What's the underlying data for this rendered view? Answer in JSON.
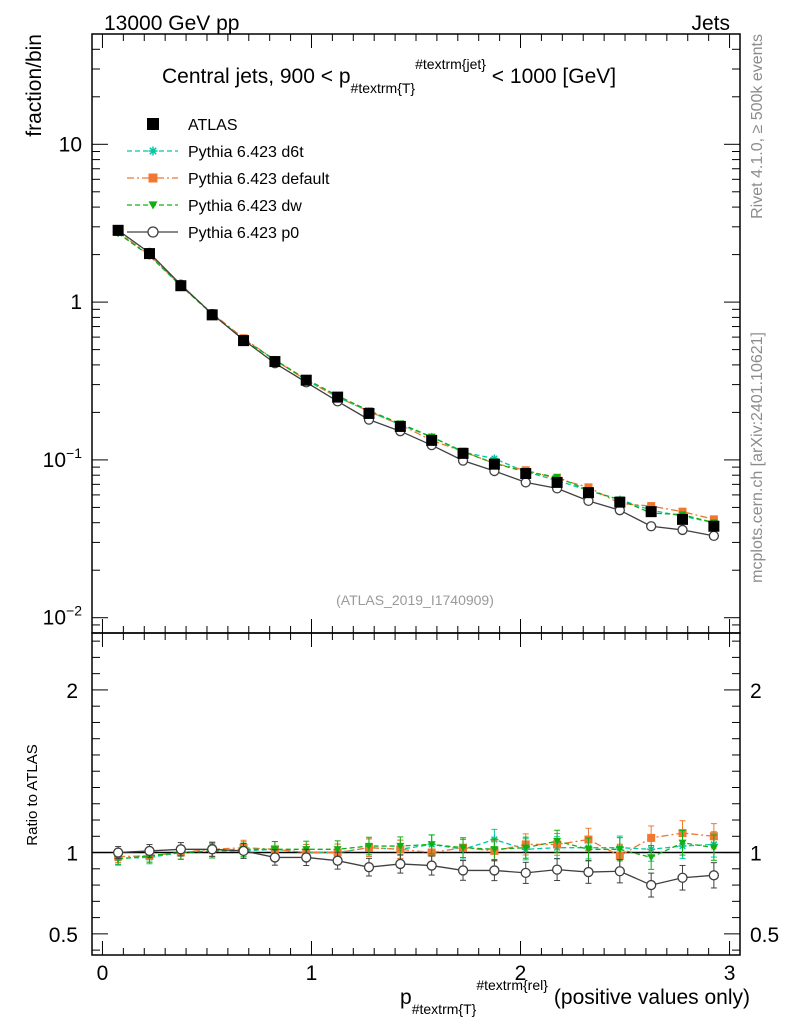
{
  "header": {
    "energy_label": "13000 GeV pp",
    "process_label": "Jets"
  },
  "side_labels": {
    "rivet": "Rivet 4.1.0, ≥ 500k events",
    "mcplots": "mcplots.cern.ch [arXiv:2401.10621]"
  },
  "chart_data": {
    "type": "line",
    "title_prefix": "Central jets, 900 < p",
    "title_sub": "#textrm{T}",
    "title_sup": "#textrm{jet}",
    "title_suffix": " < 1000 [GeV]",
    "watermark": "(ATLAS_2019_I1740909)",
    "ylabel": "fraction/bin",
    "ratio_ylabel": "Ratio to ATLAS",
    "xlabel_main": "p",
    "xlabel_sub": "#textrm{T}",
    "xlabel_sup": "#textrm{rel}",
    "xlabel_suffix": "(positive values only)",
    "xlim": [
      -0.05,
      3.05
    ],
    "ylim": [
      0.008,
      50
    ],
    "yscale": "log",
    "ratio_ylim": [
      0.37,
      2.35
    ],
    "x_tick_labels": [
      "0",
      "1",
      "2",
      "3"
    ],
    "y_tick_labels": [
      {
        "base": "10",
        "exp": "−2"
      },
      {
        "base": "10",
        "exp": "−1"
      },
      {
        "base": "1",
        "exp": ""
      },
      {
        "base": "10",
        "exp": ""
      }
    ],
    "ratio_tick_labels": [
      "0.5",
      "1",
      "2"
    ],
    "x": [
      0.075,
      0.225,
      0.375,
      0.525,
      0.675,
      0.825,
      0.975,
      1.125,
      1.275,
      1.425,
      1.575,
      1.725,
      1.875,
      2.025,
      2.175,
      2.325,
      2.475,
      2.625,
      2.775,
      2.925
    ],
    "series": [
      {
        "name": "ATLAS",
        "color": "#000000",
        "marker": "square",
        "linestyle": "none",
        "values": [
          2.85,
          2.03,
          1.27,
          0.83,
          0.57,
          0.42,
          0.32,
          0.25,
          0.197,
          0.163,
          0.133,
          0.11,
          0.094,
          0.082,
          0.072,
          0.062,
          0.054,
          0.047,
          0.042,
          0.038
        ],
        "ratio": [
          1,
          1,
          1,
          1,
          1,
          1,
          1,
          1,
          1,
          1,
          1,
          1,
          1,
          1,
          1,
          1,
          1,
          1,
          1,
          1
        ]
      },
      {
        "name": "Pythia 6.423 d6t",
        "color": "#00c8a0",
        "marker": "star",
        "linestyle": "dashed",
        "values": [
          2.75,
          1.97,
          1.27,
          0.84,
          0.58,
          0.43,
          0.32,
          0.25,
          0.203,
          0.167,
          0.14,
          0.112,
          0.102,
          0.084,
          0.074,
          0.064,
          0.056,
          0.048,
          0.044,
          0.04
        ],
        "ratio": [
          0.965,
          0.97,
          1.0,
          1.01,
          1.01,
          1.02,
          1.0,
          1.0,
          1.03,
          1.02,
          1.05,
          1.02,
          1.08,
          1.02,
          1.03,
          1.03,
          1.03,
          1.02,
          1.04,
          1.05
        ]
      },
      {
        "name": "Pythia 6.423 default",
        "color": "#f07830",
        "marker": "square",
        "linestyle": "dashdot",
        "values": [
          2.78,
          1.99,
          1.27,
          0.85,
          0.59,
          0.43,
          0.32,
          0.25,
          0.203,
          0.167,
          0.133,
          0.113,
          0.095,
          0.086,
          0.076,
          0.067,
          0.053,
          0.051,
          0.047,
          0.042
        ],
        "ratio": [
          0.975,
          0.98,
          1.0,
          1.02,
          1.03,
          1.02,
          1.0,
          1.0,
          1.03,
          1.02,
          1.0,
          1.03,
          1.01,
          1.05,
          1.05,
          1.08,
          0.98,
          1.09,
          1.12,
          1.1
        ]
      },
      {
        "name": "Pythia 6.423 dw",
        "color": "#10b010",
        "marker": "triangle-down",
        "linestyle": "dashed",
        "values": [
          2.73,
          1.97,
          1.27,
          0.84,
          0.58,
          0.43,
          0.325,
          0.255,
          0.205,
          0.17,
          0.14,
          0.113,
          0.095,
          0.084,
          0.078,
          0.064,
          0.056,
          0.046,
          0.045,
          0.04
        ],
        "ratio": [
          0.96,
          0.98,
          1.0,
          1.01,
          1.02,
          1.02,
          1.02,
          1.02,
          1.04,
          1.04,
          1.05,
          1.03,
          1.02,
          1.03,
          1.07,
          1.02,
          1.02,
          0.97,
          1.06,
          1.03
        ]
      },
      {
        "name": "Pythia 6.423 p0",
        "color": "#404040",
        "marker": "circle-open",
        "linestyle": "solid",
        "values": [
          2.85,
          2.05,
          1.29,
          0.84,
          0.575,
          0.41,
          0.31,
          0.235,
          0.18,
          0.152,
          0.124,
          0.099,
          0.085,
          0.072,
          0.066,
          0.055,
          0.048,
          0.038,
          0.036,
          0.033
        ],
        "ratio": [
          1.0,
          1.01,
          1.02,
          1.02,
          1.01,
          0.97,
          0.97,
          0.95,
          0.91,
          0.93,
          0.92,
          0.89,
          0.89,
          0.875,
          0.895,
          0.88,
          0.885,
          0.8,
          0.845,
          0.86
        ]
      }
    ]
  }
}
